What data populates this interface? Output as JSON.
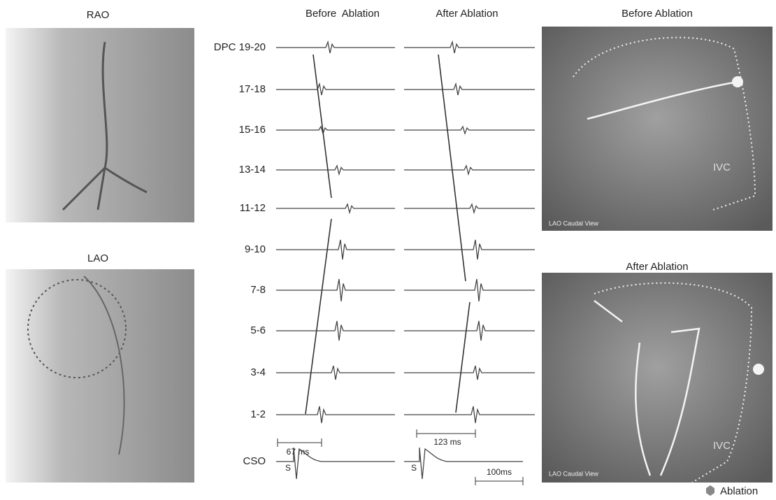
{
  "left_panels": [
    {
      "title": "RAO"
    },
    {
      "title": "LAO"
    }
  ],
  "traces": {
    "columns": [
      "Before  Ablation",
      "After Ablation"
    ],
    "channels": [
      "DPC 19-20",
      "17-18",
      "15-16",
      "13-14",
      "11-12",
      "9-10",
      "7-8",
      "5-6",
      "3-4",
      "1-2",
      "CSO"
    ],
    "stimulus_label": "S",
    "measurements": [
      "67 ms",
      "123 ms"
    ],
    "scale_bar": "100ms"
  },
  "maps": [
    {
      "title": "Before Ablation",
      "view": "LAO Caudal View",
      "structure": "IVC"
    },
    {
      "title": "After Ablation",
      "view": "LAO Caudal View",
      "structure": "IVC"
    }
  ],
  "legend": "Ablation"
}
